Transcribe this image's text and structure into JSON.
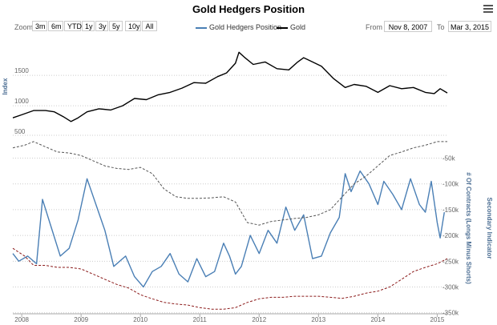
{
  "title": "Gold Hedgers Position",
  "menu": {
    "icon": "hamburger-menu-icon"
  },
  "zoom": {
    "label": "Zoom",
    "buttons": [
      "3m",
      "6m",
      "YTD",
      "1y",
      "3y",
      "5y",
      "10y",
      "All"
    ]
  },
  "range": {
    "from_label": "From",
    "from_value": "Nov 8, 2007",
    "to_label": "To",
    "to_value": "Mar 3, 2015"
  },
  "colors": {
    "hedgers": "#4a7fb5",
    "gold": "#000000",
    "dashed_gray": "#555555",
    "dashed_red": "#8b1a1a",
    "grid": "#cccccc"
  },
  "chart_data": {
    "type": "line",
    "legend": [
      "Gold Hedgers Position",
      "Gold"
    ],
    "x_ticks": [
      "2008",
      "2009",
      "2010",
      "2011",
      "2012",
      "2013",
      "2014",
      "2015"
    ],
    "x_range": [
      2007.85,
      2015.17
    ],
    "upper_axis": {
      "title": "Index",
      "ticks": [
        1000,
        1500
      ],
      "range": [
        500,
        1950
      ]
    },
    "lower_axis": {
      "title": "# Of Contracts (Longs Minus Shorts)",
      "secondary_title": "Secondary Indicator",
      "ticks": [
        "-50k",
        "-100k",
        "-150k",
        "-200k",
        "-250k",
        "-300k",
        "-350k"
      ],
      "range": [
        -352000,
        -15000
      ]
    },
    "top_label": "500",
    "series": [
      {
        "name": "Gold",
        "axis": "upper",
        "x": [
          2007.85,
          2008.0,
          2008.2,
          2008.4,
          2008.55,
          2008.7,
          2008.83,
          2008.95,
          2009.1,
          2009.3,
          2009.5,
          2009.7,
          2009.9,
          2010.1,
          2010.3,
          2010.5,
          2010.7,
          2010.9,
          2011.1,
          2011.3,
          2011.45,
          2011.6,
          2011.66,
          2011.75,
          2011.9,
          2012.1,
          2012.3,
          2012.5,
          2012.65,
          2012.75,
          2012.9,
          2013.05,
          2013.25,
          2013.45,
          2013.6,
          2013.8,
          2014.0,
          2014.2,
          2014.4,
          2014.6,
          2014.8,
          2014.95,
          2015.05,
          2015.17
        ],
        "values": [
          800,
          850,
          920,
          920,
          900,
          820,
          740,
          800,
          900,
          950,
          930,
          1000,
          1120,
          1100,
          1180,
          1220,
          1290,
          1380,
          1370,
          1480,
          1540,
          1700,
          1880,
          1800,
          1680,
          1720,
          1610,
          1590,
          1720,
          1790,
          1720,
          1650,
          1450,
          1300,
          1350,
          1320,
          1220,
          1330,
          1280,
          1300,
          1220,
          1200,
          1280,
          1210
        ]
      },
      {
        "name": "Gold Hedgers Position",
        "axis": "lower",
        "x": [
          2007.85,
          2007.95,
          2008.1,
          2008.25,
          2008.35,
          2008.5,
          2008.65,
          2008.8,
          2008.95,
          2009.1,
          2009.25,
          2009.4,
          2009.55,
          2009.75,
          2009.9,
          2010.05,
          2010.2,
          2010.35,
          2010.5,
          2010.65,
          2010.8,
          2010.95,
          2011.1,
          2011.25,
          2011.4,
          2011.5,
          2011.6,
          2011.7,
          2011.85,
          2012.0,
          2012.15,
          2012.3,
          2012.45,
          2012.6,
          2012.75,
          2012.9,
          2013.05,
          2013.2,
          2013.35,
          2013.45,
          2013.55,
          2013.7,
          2013.85,
          2014.0,
          2014.1,
          2014.25,
          2014.4,
          2014.55,
          2014.7,
          2014.8,
          2014.9,
          2015.0,
          2015.05,
          2015.12
        ],
        "values": [
          -235000,
          -250000,
          -240000,
          -255000,
          -130000,
          -185000,
          -240000,
          -225000,
          -170000,
          -90000,
          -140000,
          -190000,
          -260000,
          -240000,
          -280000,
          -300000,
          -270000,
          -260000,
          -235000,
          -275000,
          -290000,
          -245000,
          -280000,
          -270000,
          -215000,
          -240000,
          -275000,
          -260000,
          -200000,
          -235000,
          -190000,
          -215000,
          -145000,
          -190000,
          -160000,
          -245000,
          -240000,
          -195000,
          -165000,
          -80000,
          -115000,
          -75000,
          -100000,
          -140000,
          -95000,
          -120000,
          -150000,
          -90000,
          -140000,
          -155000,
          -95000,
          -175000,
          -205000,
          -155000
        ]
      },
      {
        "name": "Dashed gray",
        "axis": "lower",
        "style": "dashed",
        "x": [
          2007.85,
          2008.05,
          2008.2,
          2008.4,
          2008.6,
          2008.8,
          2009.0,
          2009.2,
          2009.4,
          2009.6,
          2009.8,
          2010.0,
          2010.2,
          2010.4,
          2010.6,
          2010.8,
          2011.0,
          2011.2,
          2011.4,
          2011.6,
          2011.8,
          2012.0,
          2012.2,
          2012.4,
          2012.6,
          2012.8,
          2013.0,
          2013.2,
          2013.4,
          2013.6,
          2013.8,
          2014.0,
          2014.2,
          2014.4,
          2014.6,
          2014.8,
          2015.0,
          2015.17
        ],
        "values": [
          -30000,
          -25000,
          -18000,
          -28000,
          -38000,
          -40000,
          -45000,
          -55000,
          -65000,
          -70000,
          -72000,
          -68000,
          -80000,
          -110000,
          -125000,
          -128000,
          -128000,
          -127000,
          -125000,
          -135000,
          -175000,
          -180000,
          -173000,
          -170000,
          -167000,
          -165000,
          -160000,
          -150000,
          -125000,
          -100000,
          -85000,
          -65000,
          -45000,
          -38000,
          -30000,
          -25000,
          -18000,
          -18000
        ]
      },
      {
        "name": "Dashed red",
        "axis": "lower",
        "style": "dashed",
        "x": [
          2007.85,
          2008.05,
          2008.2,
          2008.4,
          2008.6,
          2008.8,
          2009.0,
          2009.2,
          2009.4,
          2009.6,
          2009.8,
          2010.0,
          2010.2,
          2010.4,
          2010.6,
          2010.8,
          2011.0,
          2011.2,
          2011.4,
          2011.6,
          2011.8,
          2012.0,
          2012.2,
          2012.4,
          2012.6,
          2012.8,
          2013.0,
          2013.2,
          2013.4,
          2013.6,
          2013.8,
          2014.0,
          2014.2,
          2014.4,
          2014.6,
          2014.8,
          2015.0,
          2015.17
        ],
        "values": [
          -225000,
          -240000,
          -258000,
          -258000,
          -262000,
          -262000,
          -265000,
          -275000,
          -285000,
          -295000,
          -302000,
          -315000,
          -323000,
          -330000,
          -333000,
          -335000,
          -340000,
          -343000,
          -343000,
          -340000,
          -330000,
          -323000,
          -320000,
          -320000,
          -318000,
          -318000,
          -318000,
          -320000,
          -322000,
          -318000,
          -312000,
          -308000,
          -300000,
          -285000,
          -270000,
          -262000,
          -255000,
          -245000
        ]
      }
    ]
  }
}
